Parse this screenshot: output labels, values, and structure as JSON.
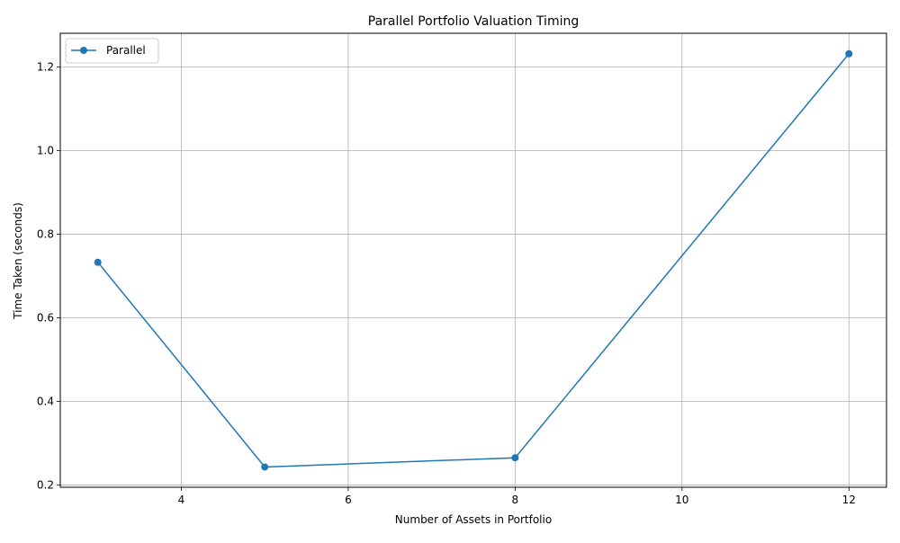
{
  "chart_data": {
    "type": "line",
    "title": "Parallel Portfolio Valuation Timing",
    "xlabel": "Number of Assets in Portfolio",
    "ylabel": "Time Taken (seconds)",
    "xlim": [
      2.55,
      12.45
    ],
    "ylim": [
      0.1945,
      1.281
    ],
    "xticks": [
      4,
      6,
      8,
      10,
      12
    ],
    "yticks": [
      0.2,
      0.4,
      0.6,
      0.8,
      1.0,
      1.2
    ],
    "xtick_labels": [
      "4",
      "6",
      "8",
      "10",
      "12"
    ],
    "ytick_labels": [
      "0.2",
      "0.4",
      "0.6",
      "0.8",
      "1.0",
      "1.2"
    ],
    "grid": true,
    "legend_position": "top-left",
    "series": [
      {
        "name": "Parallel",
        "color": "#1f77b4",
        "marker": "circle",
        "x": [
          3,
          5,
          8,
          12
        ],
        "y": [
          0.733,
          0.243,
          0.265,
          1.232
        ]
      }
    ]
  }
}
